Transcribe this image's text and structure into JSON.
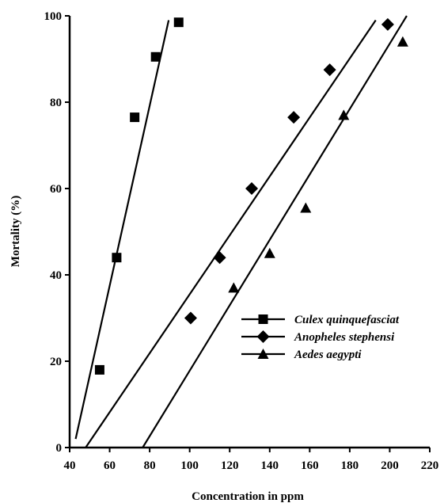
{
  "chart_data": {
    "type": "scatter",
    "xlabel": "Concentration in ppm",
    "ylabel": "Mortality (%)",
    "xlim": [
      40,
      220
    ],
    "ylim": [
      0,
      100
    ],
    "xticks": [
      "40",
      "60",
      "80",
      "100",
      "120",
      "140",
      "160",
      "180",
      "200",
      "220"
    ],
    "yticks": [
      "0",
      "20",
      "40",
      "60",
      "80",
      "100"
    ],
    "grid": false,
    "legend_position": "center-right",
    "series": [
      {
        "name": "Culex quinquefasciat",
        "marker": "square",
        "points": [
          [
            55,
            18
          ],
          [
            63.5,
            44
          ],
          [
            72.5,
            76.5
          ],
          [
            83,
            90.5
          ],
          [
            94.5,
            98.5
          ]
        ],
        "fit_line": [
          [
            43,
            2
          ],
          [
            89.5,
            99
          ]
        ]
      },
      {
        "name": "Anopheles stephensi",
        "marker": "diamond",
        "points": [
          [
            100.5,
            30
          ],
          [
            115,
            44
          ],
          [
            131,
            60
          ],
          [
            152,
            76.5
          ],
          [
            170,
            87.5
          ],
          [
            199,
            98
          ]
        ],
        "fit_line": [
          [
            48,
            0
          ],
          [
            193,
            99
          ]
        ]
      },
      {
        "name": "Aedes aegypti",
        "marker": "triangle",
        "points": [
          [
            122,
            37
          ],
          [
            140,
            45
          ],
          [
            158,
            55.5
          ],
          [
            177,
            77
          ],
          [
            206.5,
            94
          ]
        ],
        "fit_line": [
          [
            76.5,
            0
          ],
          [
            208.5,
            100
          ]
        ]
      }
    ]
  }
}
